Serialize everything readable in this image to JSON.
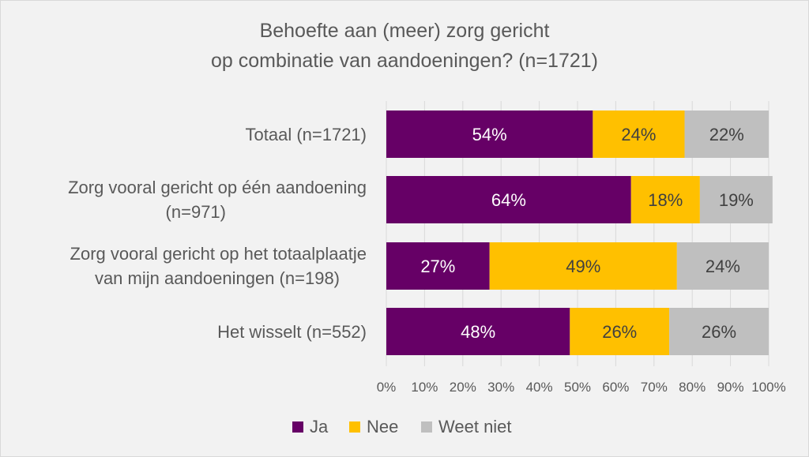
{
  "chart_data": {
    "type": "bar",
    "orientation": "horizontal",
    "stacked": true,
    "title": "Behoefte aan (meer) zorg gericht op combinatie van aandoeningen? (n=1721)",
    "title_lines": [
      "Behoefte aan (meer) zorg gericht",
      "op combinatie van aandoeningen? (n=1721)"
    ],
    "categories": [
      [
        "Totaal (n=1721)"
      ],
      [
        "Zorg vooral gericht op één aandoening",
        "(n=971)"
      ],
      [
        "Zorg vooral gericht op het totaalplaatje",
        "van mijn aandoeningen (n=198)"
      ],
      [
        "Het wisselt (n=552)"
      ]
    ],
    "series": [
      {
        "name": "Ja",
        "color": "#660066",
        "label_color": "#ffffff",
        "values": [
          54,
          64,
          27,
          48
        ],
        "labels": [
          "54%",
          "64%",
          "27%",
          "48%"
        ]
      },
      {
        "name": "Nee",
        "color": "#ffc000",
        "label_color": "#404040",
        "values": [
          24,
          18,
          49,
          26
        ],
        "labels": [
          "24%",
          "18%",
          "49%",
          "26%"
        ]
      },
      {
        "name": "Weet niet",
        "color": "#bfbfbf",
        "label_color": "#404040",
        "values": [
          22,
          19,
          24,
          26
        ],
        "labels": [
          "22%",
          "19%",
          "24%",
          "26%"
        ]
      }
    ],
    "xlim": [
      0,
      100
    ],
    "xticks": [
      "0%",
      "10%",
      "20%",
      "30%",
      "40%",
      "50%",
      "60%",
      "70%",
      "80%",
      "90%",
      "100%"
    ],
    "grid": true,
    "legend_position": "bottom"
  }
}
